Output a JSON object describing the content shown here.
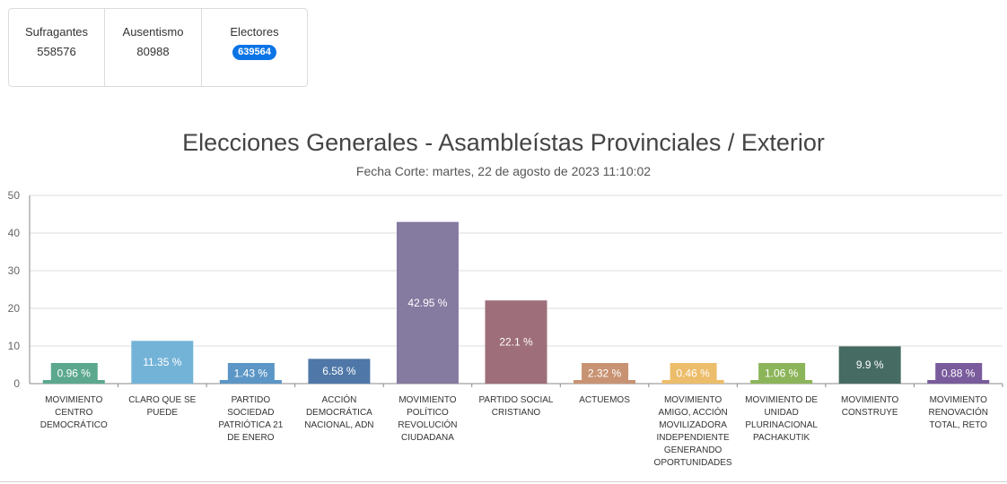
{
  "stats": {
    "sufragantes": {
      "label": "Sufragantes",
      "value": "558576"
    },
    "ausentismo": {
      "label": "Ausentismo",
      "value": "80988"
    },
    "electores": {
      "label": "Electores",
      "value": "639564"
    }
  },
  "chart_data": {
    "type": "bar",
    "title": "Elecciones Generales - Asambleístas Provinciales / Exterior",
    "subtitle": "Fecha Corte: martes, 22 de agosto de 2023 11:10:02",
    "ylim": [
      0,
      50
    ],
    "yticks": [
      0,
      10,
      20,
      30,
      40,
      50
    ],
    "grid": true,
    "categories": [
      [
        "MOVIMIENTO",
        "CENTRO",
        "DEMOCRÁTICO"
      ],
      [
        "CLARO QUE SE",
        "PUEDE"
      ],
      [
        "PARTIDO",
        "SOCIEDAD",
        "PATRIÓTICA 21",
        "DE ENERO"
      ],
      [
        "ACCIÓN",
        "DEMOCRÁTICA",
        "NACIONAL, ADN"
      ],
      [
        "MOVIMIENTO",
        "POLÍTICO",
        "REVOLUCIÓN",
        "CIUDADANA"
      ],
      [
        "PARTIDO SOCIAL",
        "CRISTIANO"
      ],
      [
        "ACTUEMOS"
      ],
      [
        "MOVIMIENTO",
        "AMIGO, ACCIÓN",
        "MOVILIZADORA",
        "INDEPENDIENTE",
        "GENERANDO",
        "OPORTUNIDADES"
      ],
      [
        "MOVIMIENTO DE",
        "UNIDAD",
        "PLURINACIONAL",
        "PACHAKUTIK"
      ],
      [
        "MOVIMIENTO",
        "CONSTRUYE"
      ],
      [
        "MOVIMIENTO",
        "RENOVACIÓN",
        "TOTAL, RETO"
      ]
    ],
    "values": [
      0.96,
      11.35,
      1.43,
      6.58,
      42.95,
      22.1,
      2.32,
      0.46,
      1.06,
      9.9,
      0.88
    ],
    "data_labels": [
      "0.96 %",
      "11.35 %",
      "1.43 %",
      "6.58 %",
      "42.95 %",
      "22.1 %",
      "2.32 %",
      "0.46 %",
      "1.06 %",
      "9.9 %",
      "0.88 %"
    ],
    "colors": [
      "#5ba88f",
      "#74b3d8",
      "#5b96c6",
      "#4f78a8",
      "#857aa0",
      "#9e6e7a",
      "#c89373",
      "#ecbd6a",
      "#8cb55a",
      "#466b63",
      "#7a5b9c"
    ]
  }
}
